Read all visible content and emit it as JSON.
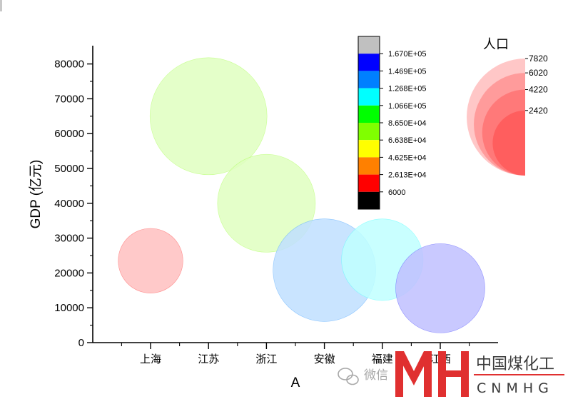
{
  "chart_data": {
    "type": "scatter",
    "subtype": "bubble",
    "xlabel": "A",
    "ylabel": "GDP (亿元)",
    "categories": [
      "上海",
      "江苏",
      "浙江",
      "安徽",
      "福建",
      "江西"
    ],
    "ylim": [
      0,
      85000
    ],
    "yticks": [
      0,
      10000,
      20000,
      30000,
      40000,
      50000,
      60000,
      70000,
      80000
    ],
    "yticks_labels": [
      "0",
      "10000",
      "20000",
      "30000",
      "40000",
      "50000",
      "60000",
      "70000",
      "80000"
    ],
    "grid": false,
    "points": [
      {
        "category": "上海",
        "gdp": 23500,
        "population": 2420,
        "color_value": 24000
      },
      {
        "category": "江苏",
        "gdp": 65000,
        "population": 7920,
        "color_value": 76000
      },
      {
        "category": "浙江",
        "gdp": 40000,
        "population": 5540,
        "color_value": 76000
      },
      {
        "category": "安徽",
        "gdp": 20800,
        "population": 6100,
        "color_value": 128000
      },
      {
        "category": "福建",
        "gdp": 23800,
        "population": 3850,
        "color_value": 116000
      },
      {
        "category": "江西",
        "gdp": 15600,
        "population": 4600,
        "color_value": 152000
      }
    ],
    "colorbar": {
      "levels": [
        "6000",
        "2.613E+04",
        "4.625E+04",
        "6.638E+04",
        "8.650E+04",
        "1.066E+05",
        "1.268E+05",
        "1.469E+05",
        "1.670E+05"
      ],
      "colors": [
        "#000000",
        "#ff0000",
        "#ff8000",
        "#ffff00",
        "#80ff00",
        "#00ff00",
        "#00ffff",
        "#0080ff",
        "#0000ff",
        "#c0c0c0"
      ],
      "bubble_fills": [
        "#bfbfbf",
        "#ffbfbf",
        "#ffdfbf",
        "#ffffbf",
        "#dfffbf",
        "#bfffbf",
        "#bfffff",
        "#bfdfff",
        "#bfbfff",
        "#e6e6e6"
      ]
    },
    "size_legend": {
      "title": "人口",
      "values": [
        7820,
        6020,
        4220,
        2420
      ],
      "labels": [
        "7820",
        "6020",
        "4220",
        "2420"
      ],
      "fill": "#ff0000"
    }
  },
  "watermark": {
    "wechat_text": "微信",
    "logo_letters": "MH",
    "logo_cn": "中国煤化工",
    "logo_en": "CNMHG",
    "logo_color": "#e03030"
  }
}
